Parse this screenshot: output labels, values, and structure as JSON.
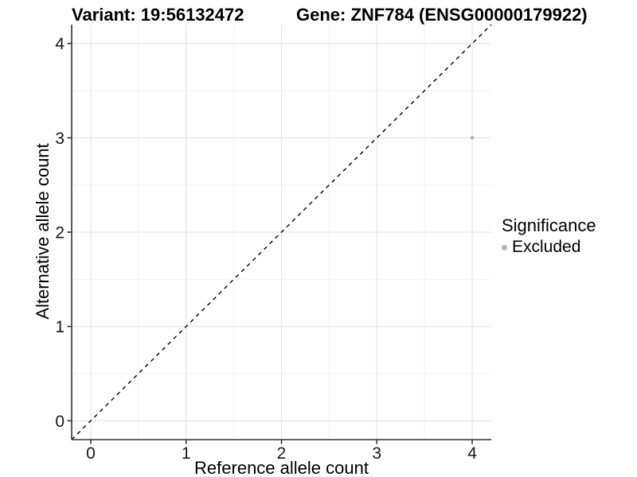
{
  "titles": {
    "left": "Variant: 19:56132472",
    "right": "Gene: ZNF784 (ENSG00000179922)"
  },
  "legend": {
    "title": "Significance",
    "position": "right-center",
    "items": [
      {
        "label": "Excluded",
        "color": "#b5b5b5"
      }
    ]
  },
  "chart_data": {
    "type": "scatter",
    "xlabel": "Reference allele count",
    "ylabel": "Alternative allele count",
    "xlim": [
      -0.2,
      4.2
    ],
    "ylim": [
      -0.2,
      4.2
    ],
    "xticks": [
      0,
      1,
      2,
      3,
      4
    ],
    "yticks": [
      0,
      1,
      2,
      3,
      4
    ],
    "minor_grid_step": 0.5,
    "grid": true,
    "series": [
      {
        "name": "Excluded",
        "color": "#b5b5b5",
        "points": [
          {
            "x": 4,
            "y": 3
          }
        ]
      }
    ],
    "reference_line": {
      "type": "identity",
      "style": "dashed",
      "color": "#000000",
      "from": -0.2,
      "to": 4.2
    }
  },
  "colors": {
    "background": "#ffffff",
    "major_grid": "#e7e7e7",
    "minor_grid": "#f2f2f2",
    "axis_line": "#333333",
    "tick": "#333333",
    "tick_label": "#1a1a1a",
    "point": "#b5b5b5",
    "dashed_line": "#000000"
  }
}
